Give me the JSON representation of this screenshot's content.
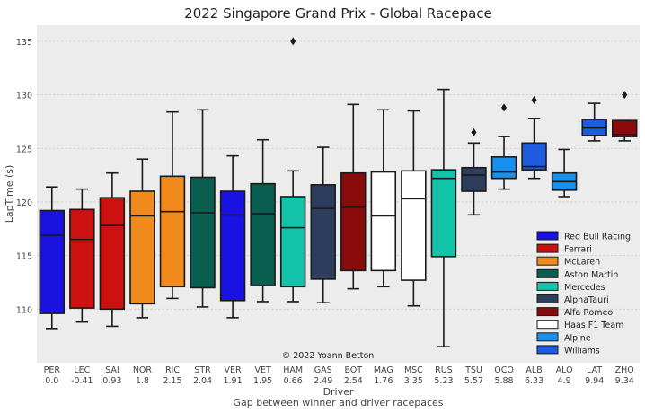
{
  "chart_data": {
    "type": "box",
    "title": "2022 Singapore Grand Prix - Global Racepace",
    "xlabel": "Driver",
    "xlabel2": "Gap between winner and driver racepaces",
    "ylabel": "LapTime (s)",
    "ylim": [
      105,
      136.5
    ],
    "yticks": [
      110,
      115,
      120,
      125,
      130,
      135
    ],
    "grid": true,
    "legend_position": "lower-right",
    "annotation": "© 2022 Yoann Betton",
    "teams": [
      {
        "name": "Red Bull Racing",
        "color": "#1a12e0"
      },
      {
        "name": "Ferrari",
        "color": "#cc1111"
      },
      {
        "name": "McLaren",
        "color": "#f08a1c"
      },
      {
        "name": "Aston Martin",
        "color": "#0a5e4f"
      },
      {
        "name": "Mercedes",
        "color": "#14c4aa"
      },
      {
        "name": "AlphaTauri",
        "color": "#2c3e5c"
      },
      {
        "name": "Alfa Romeo",
        "color": "#8a0b0b"
      },
      {
        "name": "Haas F1 Team",
        "color": "#ffffff"
      },
      {
        "name": "Alpine",
        "color": "#1890ee"
      },
      {
        "name": "Williams",
        "color": "#1d5be0"
      }
    ],
    "drivers": [
      {
        "code": "PER",
        "gap": "0.0",
        "team": 0,
        "whislo": 108.2,
        "q1": 109.6,
        "med": 116.9,
        "q3": 119.2,
        "whishi": 121.4,
        "fliers": []
      },
      {
        "code": "LEC",
        "gap": "-0.41",
        "team": 1,
        "whislo": 108.8,
        "q1": 110.1,
        "med": 116.5,
        "q3": 119.3,
        "whishi": 121.2,
        "fliers": []
      },
      {
        "code": "SAI",
        "gap": "0.93",
        "team": 1,
        "whislo": 108.4,
        "q1": 110.0,
        "med": 117.8,
        "q3": 120.4,
        "whishi": 122.7,
        "fliers": []
      },
      {
        "code": "NOR",
        "gap": "1.8",
        "team": 2,
        "whislo": 109.2,
        "q1": 110.5,
        "med": 118.7,
        "q3": 121.0,
        "whishi": 124.0,
        "fliers": []
      },
      {
        "code": "RIC",
        "gap": "2.15",
        "team": 2,
        "whislo": 111.0,
        "q1": 112.1,
        "med": 119.1,
        "q3": 122.4,
        "whishi": 128.4,
        "fliers": []
      },
      {
        "code": "STR",
        "gap": "2.04",
        "team": 3,
        "whislo": 110.2,
        "q1": 112.0,
        "med": 119.0,
        "q3": 122.3,
        "whishi": 128.6,
        "fliers": []
      },
      {
        "code": "VER",
        "gap": "1.91",
        "team": 0,
        "whislo": 109.2,
        "q1": 110.8,
        "med": 118.8,
        "q3": 121.0,
        "whishi": 124.3,
        "fliers": []
      },
      {
        "code": "VET",
        "gap": "1.95",
        "team": 3,
        "whislo": 110.7,
        "q1": 112.2,
        "med": 118.9,
        "q3": 121.7,
        "whishi": 125.8,
        "fliers": []
      },
      {
        "code": "HAM",
        "gap": "0.66",
        "team": 4,
        "whislo": 110.7,
        "q1": 112.1,
        "med": 117.6,
        "q3": 120.5,
        "whishi": 122.9,
        "fliers": [
          135.0
        ]
      },
      {
        "code": "GAS",
        "gap": "2.49",
        "team": 5,
        "whislo": 110.6,
        "q1": 112.8,
        "med": 119.4,
        "q3": 121.6,
        "whishi": 125.1,
        "fliers": []
      },
      {
        "code": "BOT",
        "gap": "2.54",
        "team": 6,
        "whislo": 111.9,
        "q1": 113.6,
        "med": 119.5,
        "q3": 122.7,
        "whishi": 129.1,
        "fliers": []
      },
      {
        "code": "MAG",
        "gap": "1.76",
        "team": 7,
        "whislo": 112.1,
        "q1": 113.6,
        "med": 118.7,
        "q3": 122.8,
        "whishi": 128.6,
        "fliers": []
      },
      {
        "code": "MSC",
        "gap": "3.35",
        "team": 7,
        "whislo": 110.3,
        "q1": 112.7,
        "med": 120.3,
        "q3": 122.9,
        "whishi": 128.5,
        "fliers": []
      },
      {
        "code": "RUS",
        "gap": "5.23",
        "team": 4,
        "whislo": 106.5,
        "q1": 114.9,
        "med": 122.2,
        "q3": 123.0,
        "whishi": 130.5,
        "fliers": []
      },
      {
        "code": "TSU",
        "gap": "5.57",
        "team": 5,
        "whislo": 118.8,
        "q1": 121.0,
        "med": 122.5,
        "q3": 123.2,
        "whishi": 125.5,
        "fliers": [
          126.5
        ]
      },
      {
        "code": "OCO",
        "gap": "5.88",
        "team": 8,
        "whislo": 121.2,
        "q1": 122.2,
        "med": 122.8,
        "q3": 124.2,
        "whishi": 126.1,
        "fliers": [
          128.8
        ]
      },
      {
        "code": "ALB",
        "gap": "6.33",
        "team": 9,
        "whislo": 122.2,
        "q1": 123.0,
        "med": 123.3,
        "q3": 125.5,
        "whishi": 127.8,
        "fliers": [
          129.5
        ]
      },
      {
        "code": "ALO",
        "gap": "4.9",
        "team": 8,
        "whislo": 120.5,
        "q1": 121.1,
        "med": 121.9,
        "q3": 122.7,
        "whishi": 124.9,
        "fliers": []
      },
      {
        "code": "LAT",
        "gap": "9.94",
        "team": 9,
        "whislo": 125.7,
        "q1": 126.2,
        "med": 126.9,
        "q3": 127.7,
        "whishi": 129.2,
        "fliers": []
      },
      {
        "code": "ZHO",
        "gap": "9.34",
        "team": 6,
        "whislo": 125.7,
        "q1": 126.1,
        "med": 126.3,
        "q3": 127.6,
        "whishi": 127.6,
        "fliers": [
          130.0
        ]
      }
    ]
  }
}
